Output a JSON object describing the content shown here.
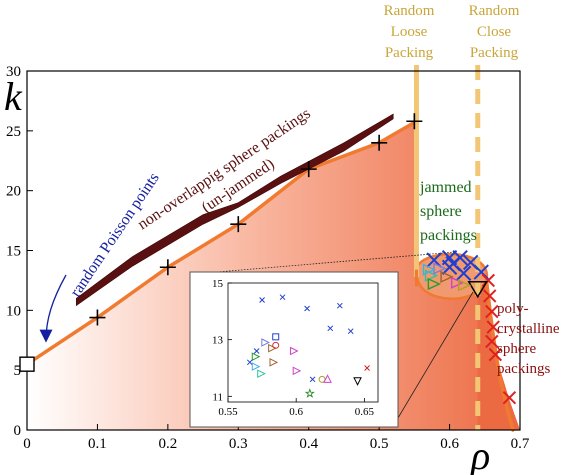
{
  "chart_data": {
    "type": "scatter",
    "xlabel": "ρ",
    "ylabel": "k",
    "xlim": [
      0,
      0.7
    ],
    "ylim": [
      0,
      30
    ],
    "x_ticks": [
      "0",
      "0.1",
      "0.2",
      "0.3",
      "0.4",
      "0.5",
      "0.6",
      "0.7"
    ],
    "y_ticks": [
      "0",
      "5",
      "10",
      "15",
      "20",
      "25",
      "30"
    ],
    "grid": false,
    "series": [
      {
        "marker": "plus",
        "points": [
          [
            0.1,
            9.4
          ],
          [
            0.2,
            13.6
          ],
          [
            0.3,
            17.2
          ],
          [
            0.4,
            21.8
          ],
          [
            0.5,
            24.0
          ],
          [
            0.55,
            25.8
          ]
        ]
      },
      {
        "marker": "square",
        "points": [
          [
            0.0,
            5.5
          ]
        ]
      },
      {
        "marker": "cross-blue",
        "points": [
          [
            0.6,
            14.4
          ],
          [
            0.615,
            14.4
          ],
          [
            0.63,
            14.0
          ],
          [
            0.645,
            13.2
          ],
          [
            0.6,
            13.6
          ],
          [
            0.62,
            13.1
          ],
          [
            0.578,
            14.2
          ],
          [
            0.605,
            13.9
          ]
        ]
      },
      {
        "marker": "cross-red",
        "points": [
          [
            0.655,
            12.5
          ],
          [
            0.657,
            11.2
          ],
          [
            0.66,
            9.9
          ],
          [
            0.662,
            8.6
          ],
          [
            0.66,
            7.4
          ],
          [
            0.665,
            6.3
          ],
          [
            0.685,
            2.7
          ]
        ]
      },
      {
        "marker": "triangle-down",
        "points": [
          [
            0.64,
            11.8
          ]
        ]
      }
    ],
    "inset": {
      "xlim": [
        0.55,
        0.66
      ],
      "ylim": [
        10.8,
        15
      ],
      "x_ticks": [
        "0.55",
        "0.6",
        "0.65"
      ],
      "y_ticks": [
        "11",
        "13",
        "15"
      ],
      "points": [
        {
          "x": 0.575,
          "y": 14.4,
          "marker": "x",
          "color": "#1f3fd0"
        },
        {
          "x": 0.59,
          "y": 14.5,
          "marker": "x",
          "color": "#1f3fd0"
        },
        {
          "x": 0.608,
          "y": 14.1,
          "marker": "x",
          "color": "#1f3fd0"
        },
        {
          "x": 0.632,
          "y": 14.2,
          "marker": "x",
          "color": "#1f3fd0"
        },
        {
          "x": 0.625,
          "y": 13.4,
          "marker": "x",
          "color": "#1f3fd0"
        },
        {
          "x": 0.64,
          "y": 13.3,
          "marker": "x",
          "color": "#1f3fd0"
        },
        {
          "x": 0.585,
          "y": 13.1,
          "marker": "square",
          "color": "#1f3fd0"
        },
        {
          "x": 0.577,
          "y": 12.9,
          "marker": "triangle-right",
          "color": "#7a7ae0"
        },
        {
          "x": 0.571,
          "y": 12.6,
          "marker": "x",
          "color": "#1f3fd0"
        },
        {
          "x": 0.57,
          "y": 12.4,
          "marker": "triangle-right",
          "color": "#2a9a2a"
        },
        {
          "x": 0.566,
          "y": 12.2,
          "marker": "x",
          "color": "#1f3fd0"
        },
        {
          "x": 0.57,
          "y": 12.05,
          "marker": "triangle-right",
          "color": "#40b0e0"
        },
        {
          "x": 0.574,
          "y": 11.8,
          "marker": "triangle-right",
          "color": "#30c0a0"
        },
        {
          "x": 0.582,
          "y": 12.7,
          "marker": "triangle-right",
          "color": "#a06030"
        },
        {
          "x": 0.585,
          "y": 12.8,
          "marker": "circle",
          "color": "#d03030"
        },
        {
          "x": 0.583,
          "y": 12.2,
          "marker": "triangle-right",
          "color": "#a06030"
        },
        {
          "x": 0.598,
          "y": 12.6,
          "marker": "triangle-right",
          "color": "#d040d0"
        },
        {
          "x": 0.6,
          "y": 11.9,
          "marker": "triangle-right",
          "color": "#d040d0"
        },
        {
          "x": 0.612,
          "y": 11.6,
          "marker": "x",
          "color": "#1f3fd0"
        },
        {
          "x": 0.619,
          "y": 11.6,
          "marker": "circle",
          "color": "#b0a020"
        },
        {
          "x": 0.623,
          "y": 11.6,
          "marker": "triangle-up",
          "color": "#d040d0"
        },
        {
          "x": 0.645,
          "y": 11.55,
          "marker": "triangle-down",
          "color": "#000000"
        },
        {
          "x": 0.652,
          "y": 12.0,
          "marker": "x",
          "color": "#d02020"
        },
        {
          "x": 0.61,
          "y": 11.1,
          "marker": "star",
          "color": "#2a8a2a"
        }
      ]
    },
    "annotations": {
      "rlp": "Random Loose Packing",
      "rcp": "Random Close Packing",
      "poisson": "random Poisson points",
      "nonoverlap1": "non-overlappig sphere packings",
      "nonoverlap2": "(un-jammed)",
      "jammed": "jammed sphere packings",
      "poly": "poly- crystalline sphere packings"
    }
  }
}
